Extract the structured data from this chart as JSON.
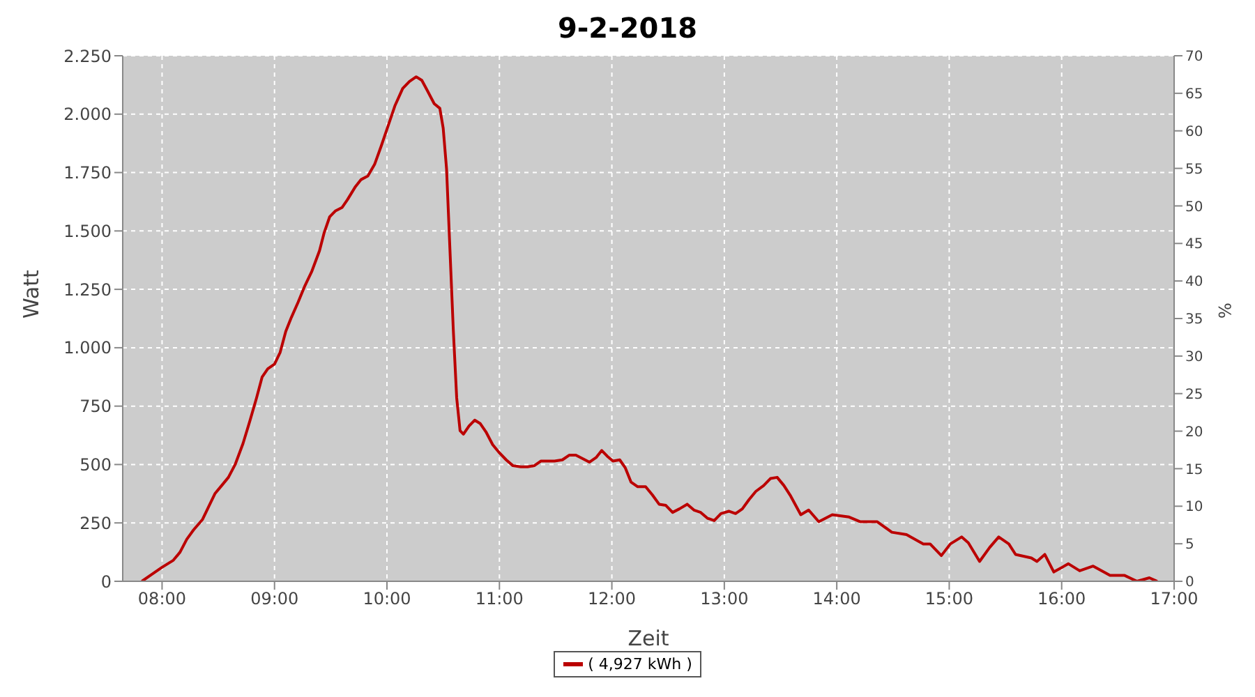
{
  "chart_data": {
    "type": "line",
    "title": "9-2-2018",
    "xlabel": "Zeit",
    "ylabel": "Watt",
    "y2label": "%",
    "x": [
      7.82,
      7.91,
      8.0,
      8.1,
      8.16,
      8.22,
      8.28,
      8.36,
      8.41,
      8.47,
      8.53,
      8.59,
      8.65,
      8.72,
      8.78,
      8.84,
      8.89,
      8.94,
      9.0,
      9.05,
      9.1,
      9.15,
      9.21,
      9.27,
      9.33,
      9.4,
      9.44,
      9.49,
      9.54,
      9.6,
      9.65,
      9.72,
      9.77,
      9.83,
      9.89,
      9.95,
      10.01,
      10.07,
      10.14,
      10.2,
      10.26,
      10.31,
      10.36,
      10.42,
      10.47,
      10.5,
      10.53,
      10.56,
      10.59,
      10.62,
      10.65,
      10.68,
      10.73,
      10.78,
      10.83,
      10.88,
      10.94,
      11.0,
      11.06,
      11.12,
      11.19,
      11.25,
      11.31,
      11.37,
      11.43,
      11.49,
      11.56,
      11.62,
      11.68,
      11.74,
      11.8,
      11.86,
      11.91,
      11.96,
      12.01,
      12.07,
      12.12,
      12.17,
      12.23,
      12.3,
      12.36,
      12.42,
      12.48,
      12.54,
      12.6,
      12.67,
      12.73,
      12.79,
      12.85,
      12.91,
      12.97,
      13.04,
      13.1,
      13.16,
      13.22,
      13.28,
      13.35,
      13.41,
      13.47,
      13.53,
      13.59,
      13.68,
      13.75,
      13.84,
      13.96,
      14.11,
      14.21,
      14.36,
      14.49,
      14.62,
      14.77,
      14.83,
      14.93,
      15.01,
      15.11,
      15.17,
      15.27,
      15.36,
      15.44,
      15.53,
      15.59,
      15.73,
      15.78,
      15.85,
      15.93,
      16.06,
      16.16,
      16.28,
      16.43,
      16.56,
      16.67,
      16.78,
      16.85
    ],
    "series": [
      {
        "name": "( 4,927 kWh )",
        "color": "#bb0000",
        "values": [
          0,
          30,
          60,
          90,
          125,
          180,
          220,
          265,
          315,
          375,
          410,
          445,
          500,
          590,
          685,
          785,
          875,
          910,
          930,
          980,
          1070,
          1130,
          1195,
          1265,
          1325,
          1415,
          1490,
          1560,
          1585,
          1600,
          1635,
          1690,
          1720,
          1735,
          1785,
          1865,
          1950,
          2035,
          2110,
          2140,
          2160,
          2145,
          2100,
          2045,
          2025,
          1940,
          1765,
          1420,
          1075,
          785,
          645,
          630,
          665,
          690,
          675,
          640,
          585,
          550,
          520,
          495,
          490,
          490,
          495,
          515,
          515,
          515,
          520,
          540,
          540,
          525,
          510,
          530,
          560,
          535,
          515,
          520,
          485,
          425,
          405,
          405,
          370,
          330,
          325,
          295,
          310,
          330,
          305,
          295,
          270,
          260,
          290,
          300,
          290,
          310,
          350,
          385,
          410,
          440,
          445,
          410,
          365,
          285,
          305,
          255,
          285,
          275,
          255,
          255,
          210,
          200,
          160,
          160,
          110,
          160,
          190,
          165,
          85,
          145,
          190,
          160,
          115,
          100,
          85,
          115,
          40,
          75,
          45,
          65,
          25,
          25,
          0,
          15,
          0
        ]
      }
    ],
    "xlim": [
      7.65,
      17
    ],
    "xticks": [
      {
        "value": 8,
        "label": "08:00"
      },
      {
        "value": 9,
        "label": "09:00"
      },
      {
        "value": 10,
        "label": "10:00"
      },
      {
        "value": 11,
        "label": "11:00"
      },
      {
        "value": 12,
        "label": "12:00"
      },
      {
        "value": 13,
        "label": "13:00"
      },
      {
        "value": 14,
        "label": "14:00"
      },
      {
        "value": 15,
        "label": "15:00"
      },
      {
        "value": 16,
        "label": "16:00"
      },
      {
        "value": 17,
        "label": "17:00"
      }
    ],
    "ylim": [
      0,
      2250
    ],
    "yticks": [
      0,
      250,
      500,
      750,
      {
        "value": 1000,
        "label": "1.000"
      },
      {
        "value": 1250,
        "label": "1.250"
      },
      {
        "value": 1500,
        "label": "1.500"
      },
      {
        "value": 1750,
        "label": "1.750"
      },
      {
        "value": 2000,
        "label": "2.000"
      },
      {
        "value": 2250,
        "label": "2.250"
      }
    ],
    "y2lim": [
      0,
      70
    ],
    "y2ticks": [
      0,
      5,
      10,
      15,
      20,
      25,
      30,
      35,
      40,
      45,
      50,
      55,
      60,
      65,
      70
    ],
    "grid": true,
    "legend": "bottom",
    "marker": "none",
    "line_style": "solid"
  }
}
